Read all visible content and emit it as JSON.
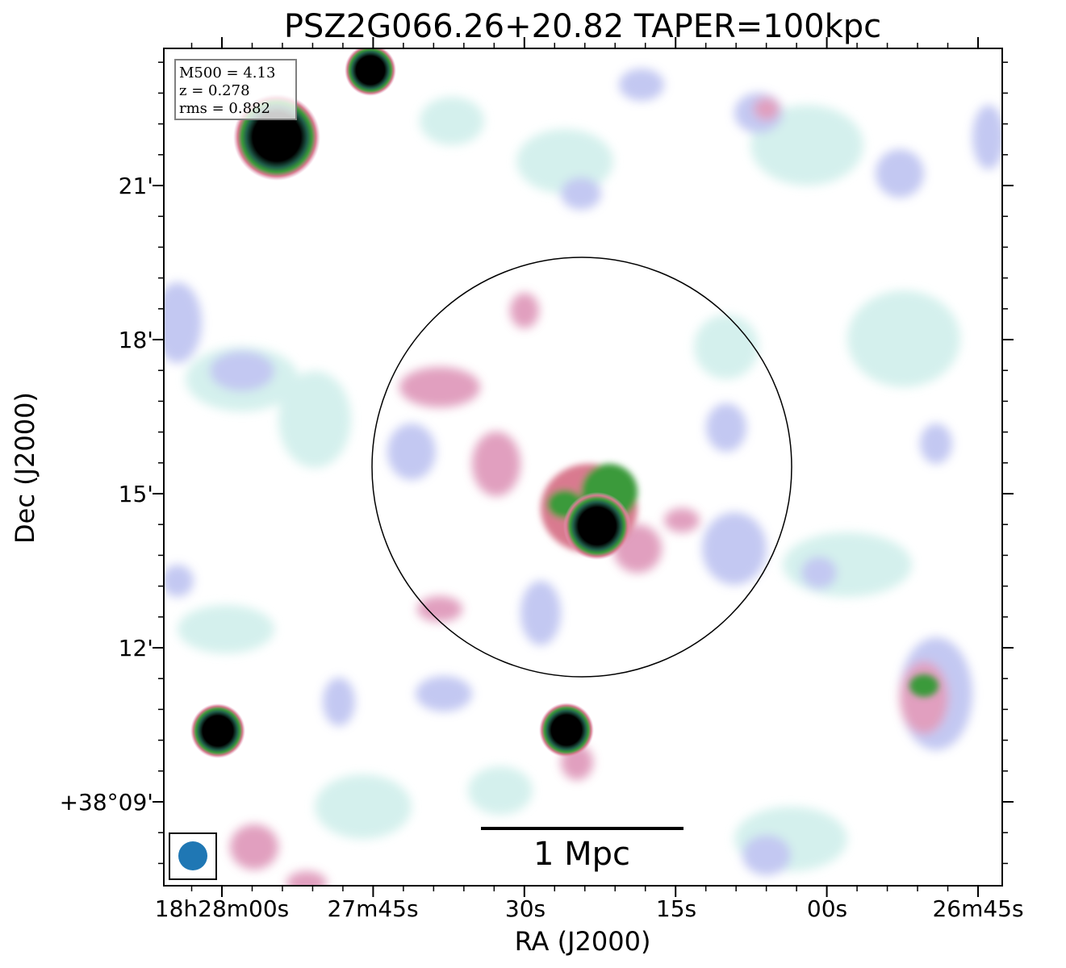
{
  "title": "PSZ2G066.26+20.82 TAPER=100kpc",
  "info_box": {
    "mass": "M500 = 4.13",
    "redshift": "z = 0.278",
    "rms": "rms = 0.882"
  },
  "x_axis": {
    "label": "RA (J2000)",
    "ticks": [
      "18h28m00s",
      "27m45s",
      "30s",
      "15s",
      "00s",
      "26m45s"
    ]
  },
  "y_axis": {
    "label": "Dec (J2000)",
    "ticks": [
      "21'",
      "18'",
      "15'",
      "12'",
      "+38°09'"
    ]
  },
  "scale_bar": {
    "label": "1 Mpc"
  },
  "colors": {
    "faint_emission": "#cdeeea",
    "low_emission": "#b9bff0",
    "mid_emission": "#dc8fb4",
    "high_emission": "#2e8a3e",
    "peak_emission": "#000000",
    "beam": "#1f77b4",
    "frame": "#000000"
  },
  "icons": {
    "beam": "filled-ellipse",
    "aperture": "circle-outline"
  }
}
